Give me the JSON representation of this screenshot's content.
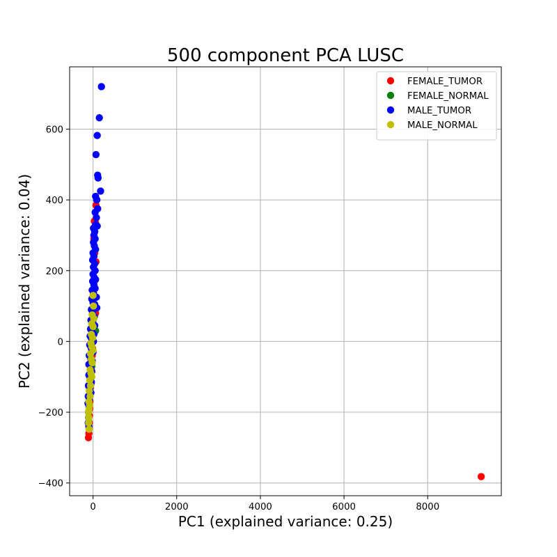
{
  "chart_data": {
    "type": "scatter",
    "title": "500 component PCA LUSC",
    "xlabel": "PC1 (explained variance: 0.25)",
    "ylabel": "PC2 (explained variance: 0.04)",
    "xlim": [
      -560,
      9760
    ],
    "ylim": [
      -436,
      776
    ],
    "xticks": [
      0,
      2000,
      4000,
      6000,
      8000
    ],
    "xtick_labels": [
      "0",
      "2000",
      "4000",
      "6000",
      "8000"
    ],
    "yticks": [
      -400,
      -200,
      0,
      200,
      400,
      600
    ],
    "ytick_labels": [
      "−400",
      "−200",
      "0",
      "200",
      "400",
      "600"
    ],
    "grid": true,
    "legend_position": "top-right",
    "series": [
      {
        "name": "FEMALE_TUMOR",
        "color": "#ff0000",
        "points": [
          [
            9280,
            -382
          ],
          [
            -110,
            -272
          ],
          [
            -100,
            -260
          ],
          [
            -95,
            -245
          ],
          [
            -90,
            -230
          ],
          [
            -88,
            -210
          ],
          [
            -80,
            -190
          ],
          [
            -75,
            -170
          ],
          [
            -70,
            -150
          ],
          [
            -60,
            -130
          ],
          [
            -50,
            -100
          ],
          [
            -40,
            -80
          ],
          [
            -30,
            -60
          ],
          [
            -20,
            -40
          ],
          [
            -10,
            -20
          ],
          [
            0,
            0
          ],
          [
            10,
            20
          ],
          [
            20,
            45
          ],
          [
            35,
            75
          ],
          [
            60,
            80
          ],
          [
            20,
            100
          ],
          [
            10,
            140
          ],
          [
            30,
            170
          ],
          [
            70,
            225
          ],
          [
            40,
            250
          ],
          [
            20,
            290
          ],
          [
            30,
            340
          ],
          [
            60,
            335
          ],
          [
            70,
            385
          ],
          [
            90,
            400
          ]
        ]
      },
      {
        "name": "FEMALE_NORMAL",
        "color": "#008000",
        "points": [
          [
            60,
            30
          ],
          [
            -10,
            50
          ],
          [
            0,
            60
          ],
          [
            -20,
            -20
          ],
          [
            -30,
            -70
          ],
          [
            -50,
            -120
          ]
        ]
      },
      {
        "name": "MALE_TUMOR",
        "color": "#0000ff",
        "points": [
          [
            200,
            720
          ],
          [
            150,
            632
          ],
          [
            100,
            582
          ],
          [
            70,
            528
          ],
          [
            110,
            470
          ],
          [
            120,
            462
          ],
          [
            180,
            425
          ],
          [
            60,
            410
          ],
          [
            90,
            400
          ],
          [
            110,
            375
          ],
          [
            50,
            365
          ],
          [
            80,
            350
          ],
          [
            60,
            330
          ],
          [
            100,
            326
          ],
          [
            10,
            320
          ],
          [
            40,
            310
          ],
          [
            20,
            300
          ],
          [
            50,
            290
          ],
          [
            10,
            280
          ],
          [
            30,
            270
          ],
          [
            60,
            260
          ],
          [
            0,
            250
          ],
          [
            20,
            240
          ],
          [
            -10,
            230
          ],
          [
            40,
            220
          ],
          [
            10,
            210
          ],
          [
            50,
            200
          ],
          [
            0,
            190
          ],
          [
            30,
            180
          ],
          [
            60,
            175
          ],
          [
            -10,
            170
          ],
          [
            20,
            160
          ],
          [
            50,
            150
          ],
          [
            -20,
            145
          ],
          [
            10,
            135
          ],
          [
            80,
            125
          ],
          [
            -30,
            120
          ],
          [
            0,
            110
          ],
          [
            40,
            105
          ],
          [
            90,
            95
          ],
          [
            -40,
            90
          ],
          [
            -10,
            80
          ],
          [
            30,
            70
          ],
          [
            -50,
            60
          ],
          [
            0,
            50
          ],
          [
            40,
            45
          ],
          [
            -60,
            35
          ],
          [
            -20,
            25
          ],
          [
            20,
            20
          ],
          [
            -70,
            15
          ],
          [
            -30,
            5
          ],
          [
            10,
            0
          ],
          [
            -80,
            -10
          ],
          [
            -40,
            -20
          ],
          [
            0,
            -30
          ],
          [
            -90,
            -40
          ],
          [
            -50,
            -50
          ],
          [
            -20,
            -55
          ],
          [
            -100,
            -65
          ],
          [
            -60,
            -75
          ],
          [
            -30,
            -85
          ],
          [
            -100,
            -95
          ],
          [
            -70,
            -105
          ],
          [
            -40,
            -115
          ],
          [
            -110,
            -125
          ],
          [
            -80,
            -135
          ],
          [
            -50,
            -145
          ],
          [
            -115,
            -155
          ],
          [
            -90,
            -165
          ],
          [
            -120,
            -175
          ],
          [
            -95,
            -185
          ],
          [
            -110,
            -200
          ],
          [
            -105,
            -215
          ],
          [
            -115,
            -230
          ],
          [
            -100,
            -240
          ]
        ]
      },
      {
        "name": "MALE_NORMAL",
        "color": "#bfbf00",
        "points": [
          [
            0,
            130
          ],
          [
            10,
            100
          ],
          [
            -20,
            75
          ],
          [
            20,
            65
          ],
          [
            -30,
            50
          ],
          [
            0,
            42
          ],
          [
            -40,
            20
          ],
          [
            -10,
            10
          ],
          [
            -50,
            -5
          ],
          [
            -30,
            -15
          ],
          [
            0,
            -25
          ],
          [
            -60,
            -35
          ],
          [
            -40,
            -50
          ],
          [
            -20,
            -60
          ],
          [
            -70,
            -80
          ],
          [
            -50,
            -90
          ],
          [
            -30,
            -100
          ],
          [
            -80,
            -110
          ],
          [
            -60,
            -125
          ],
          [
            -90,
            -140
          ],
          [
            -70,
            -155
          ],
          [
            -100,
            -170
          ],
          [
            -80,
            -180
          ],
          [
            -95,
            -190
          ],
          [
            -110,
            -200
          ],
          [
            -100,
            -215
          ],
          [
            -105,
            -230
          ],
          [
            -95,
            -248
          ]
        ]
      }
    ]
  }
}
